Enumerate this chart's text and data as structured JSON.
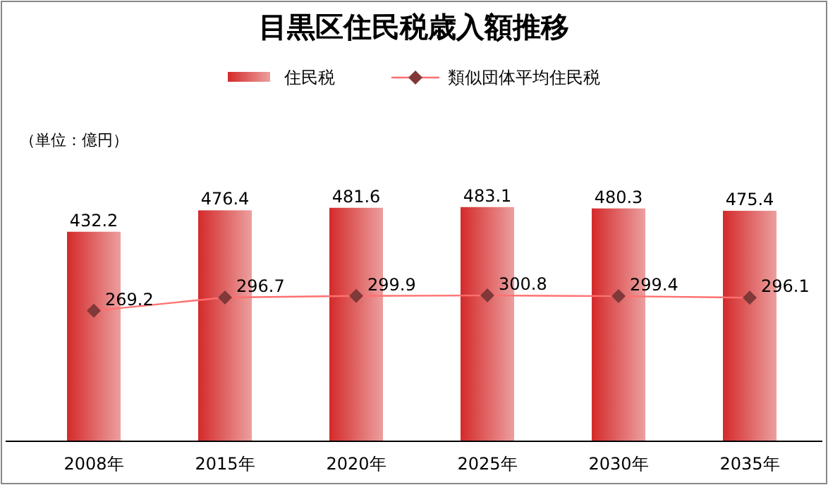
{
  "chart_data": {
    "type": "bar",
    "title": "目黒区住民税歳入額推移",
    "categories": [
      "2008年",
      "2015年",
      "2020年",
      "2025年",
      "2030年",
      "2035年"
    ],
    "series": [
      {
        "name": "住民税",
        "color": "#d42a2a",
        "values": [
          432.2,
          476.4,
          481.6,
          483.1,
          480.3,
          475.4
        ]
      },
      {
        "name": "類似団体平均住民税",
        "type": "line",
        "color": "#ff7070",
        "values": [
          269.2,
          296.7,
          299.9,
          300.8,
          299.4,
          296.1
        ]
      }
    ],
    "marker": "diamond",
    "data_labels": true,
    "legend": "top",
    "annotations": [
      "（単位：億円）"
    ]
  }
}
